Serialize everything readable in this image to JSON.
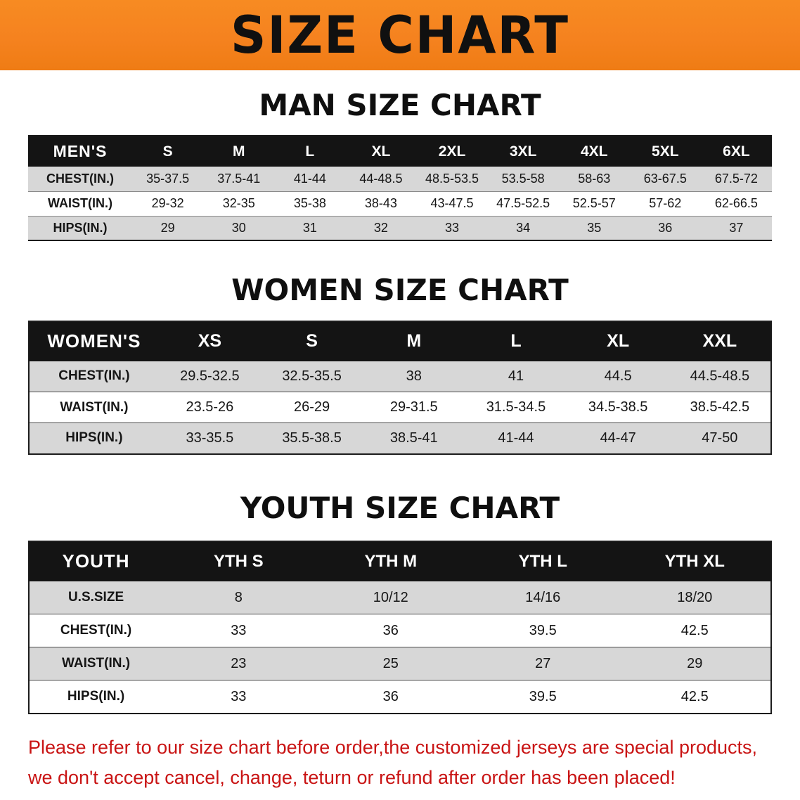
{
  "banner": {
    "title": "SIZE CHART",
    "background": "#f5821f",
    "text_color": "#101010"
  },
  "sections": [
    {
      "heading": "MAN SIZE CHART",
      "table": {
        "header": [
          "MEN'S",
          "S",
          "M",
          "L",
          "XL",
          "2XL",
          "3XL",
          "4XL",
          "5XL",
          "6XL"
        ],
        "rows": [
          {
            "label": "CHEST(IN.)",
            "values": [
              "35-37.5",
              "37.5-41",
              "41-44",
              "44-48.5",
              "48.5-53.5",
              "53.5-58",
              "58-63",
              "63-67.5",
              "67.5-72"
            ]
          },
          {
            "label": "WAIST(IN.)",
            "values": [
              "29-32",
              "32-35",
              "35-38",
              "38-43",
              "43-47.5",
              "47.5-52.5",
              "52.5-57",
              "57-62",
              "62-66.5"
            ]
          },
          {
            "label": "HIPS(IN.)",
            "values": [
              "29",
              "30",
              "31",
              "32",
              "33",
              "34",
              "35",
              "36",
              "37"
            ]
          }
        ]
      }
    },
    {
      "heading": "WOMEN SIZE CHART",
      "table": {
        "header": [
          "WOMEN'S",
          "XS",
          "S",
          "M",
          "L",
          "XL",
          "XXL"
        ],
        "rows": [
          {
            "label": "CHEST(IN.)",
            "values": [
              "29.5-32.5",
              "32.5-35.5",
              "38",
              "41",
              "44.5",
              "44.5-48.5"
            ]
          },
          {
            "label": "WAIST(IN.)",
            "values": [
              "23.5-26",
              "26-29",
              "29-31.5",
              "31.5-34.5",
              "34.5-38.5",
              "38.5-42.5"
            ]
          },
          {
            "label": "HIPS(IN.)",
            "values": [
              "33-35.5",
              "35.5-38.5",
              "38.5-41",
              "41-44",
              "44-47",
              "47-50"
            ]
          }
        ]
      }
    },
    {
      "heading": "YOUTH SIZE CHART",
      "table": {
        "header": [
          "YOUTH",
          "YTH S",
          "YTH M",
          "YTH L",
          "YTH XL"
        ],
        "rows": [
          {
            "label": "U.S.SIZE",
            "values": [
              "8",
              "10/12",
              "14/16",
              "18/20"
            ]
          },
          {
            "label": "CHEST(IN.)",
            "values": [
              "33",
              "36",
              "39.5",
              "42.5"
            ]
          },
          {
            "label": "WAIST(IN.)",
            "values": [
              "23",
              "25",
              "27",
              "29"
            ]
          },
          {
            "label": "HIPS(IN.)",
            "values": [
              "33",
              "36",
              "39.5",
              "42.5"
            ]
          }
        ]
      }
    }
  ],
  "disclaimer": {
    "line1": "Please refer to our size chart before order,the customized jerseys are special products,",
    "line2": "we don't accept cancel, change, teturn or refund after order has been placed!",
    "color": "#c91414"
  },
  "colors": {
    "banner_orange": "#f5821f",
    "table_header_black": "#141414",
    "row_gray": "#d7d7d7",
    "disclaimer_red": "#c91414"
  }
}
